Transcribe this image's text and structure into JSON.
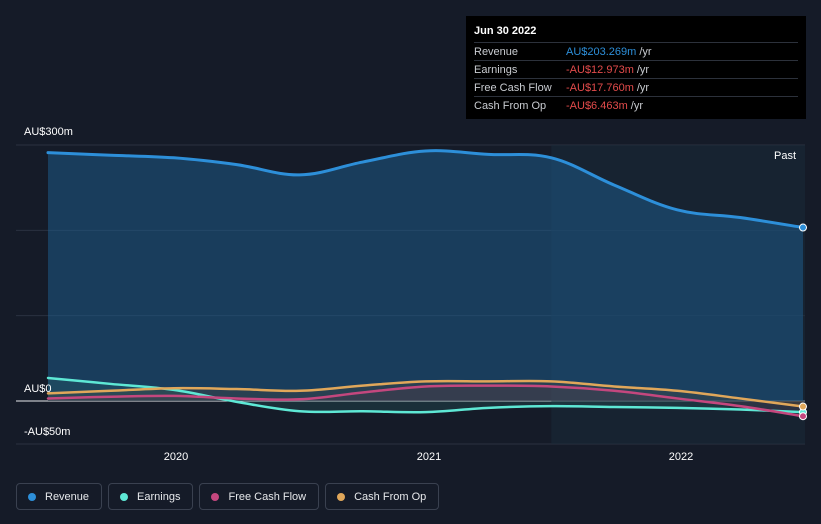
{
  "tooltip": {
    "date": "Jun 30 2022",
    "rows": [
      {
        "label": "Revenue",
        "value": "AU$203.269m",
        "unit": "/yr",
        "color": "#2d8fd9"
      },
      {
        "label": "Earnings",
        "value": "-AU$12.973m",
        "unit": "/yr",
        "color": "#e34b4b"
      },
      {
        "label": "Free Cash Flow",
        "value": "-AU$17.760m",
        "unit": "/yr",
        "color": "#e34b4b"
      },
      {
        "label": "Cash From Op",
        "value": "-AU$6.463m",
        "unit": "/yr",
        "color": "#e34b4b"
      }
    ]
  },
  "past_label": "Past",
  "legend": [
    {
      "label": "Revenue",
      "color": "#2d8fd9"
    },
    {
      "label": "Earnings",
      "color": "#5ee8d5"
    },
    {
      "label": "Free Cash Flow",
      "color": "#c4477e"
    },
    {
      "label": "Cash From Op",
      "color": "#e0a75a"
    }
  ],
  "chart_data": {
    "type": "line",
    "title": "",
    "xlabel": "",
    "ylabel": "",
    "y_tick_labels": [
      "AU$300m",
      "AU$0",
      "-AU$50m"
    ],
    "x_tick_labels": [
      "2020",
      "2021",
      "2022"
    ],
    "x_ticks": [
      2020.0,
      2021.0,
      2022.0
    ],
    "xlim": [
      2019.5,
      2022.5
    ],
    "ylim": [
      -50,
      300
    ],
    "past_region_start": 2021.5,
    "grid": true,
    "legend_position": "bottom-left",
    "x": [
      2019.5,
      2019.75,
      2020.0,
      2020.25,
      2020.5,
      2020.75,
      2021.0,
      2021.25,
      2021.5,
      2021.75,
      2022.0,
      2022.25,
      2022.5
    ],
    "series": [
      {
        "name": "Revenue",
        "color": "#2d8fd9",
        "values": [
          291,
          288,
          285,
          277,
          265,
          280,
          293,
          289,
          285,
          253,
          224,
          215,
          203.3
        ]
      },
      {
        "name": "Earnings",
        "color": "#5ee8d5",
        "values": [
          27,
          20,
          13,
          -1,
          -12,
          -12,
          -13,
          -8,
          -6,
          -7,
          -8,
          -10,
          -13.0
        ]
      },
      {
        "name": "Free Cash Flow",
        "color": "#c4477e",
        "values": [
          3,
          5,
          6,
          3,
          2,
          10,
          17,
          18,
          17,
          12,
          3,
          -6,
          -17.8
        ]
      },
      {
        "name": "Cash From Op",
        "color": "#e0a75a",
        "values": [
          9,
          12,
          15,
          14,
          12,
          18,
          23,
          23,
          23,
          17,
          12,
          3,
          -6.5
        ]
      }
    ]
  }
}
